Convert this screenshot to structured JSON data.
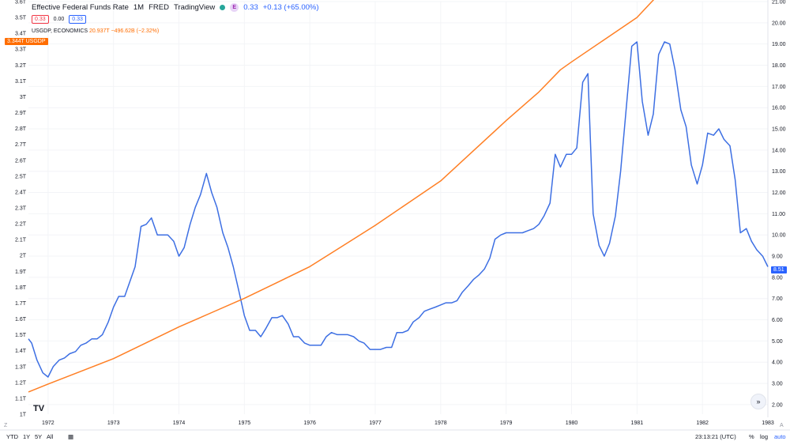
{
  "legend": {
    "title": "Effective Federal Funds Rate",
    "interval": "1M",
    "source": "FRED",
    "publisher": "TradingView",
    "e_badge": "E",
    "fed_value": "0.33",
    "fed_change": "+0.13 (+65.00%)",
    "bid": "0.33",
    "spread": "0.00",
    "ask": "0.33",
    "gdp_label": "USGDP, ECONOMICS",
    "gdp_value": "20.937T",
    "gdp_change": "−496.62B (−2.32%)"
  },
  "left_tag": {
    "value": "3.344T",
    "symbol": "USGDP"
  },
  "right_tag": {
    "value": "8.51"
  },
  "bottom_bar": {
    "ranges": [
      "YTD",
      "1Y",
      "5Y",
      "All"
    ],
    "calendar_icon": "calendar-icon",
    "time": "23:13:21 (UTC)",
    "percent": "%",
    "log": "log",
    "auto": "auto"
  },
  "goto_icon": "double-chevron-right-icon",
  "logo_text": "TV",
  "colors": {
    "fed": "#3d6fe3",
    "gdp": "#ff7f24",
    "axis_text": "#131722",
    "grid": "#f0f3fa"
  },
  "chart_data": {
    "type": "line",
    "x_ticks": [
      "1972",
      "1973",
      "1974",
      "1975",
      "1976",
      "1977",
      "1978",
      "1979",
      "1980",
      "1981",
      "1982",
      "1983"
    ],
    "left_axis_ticks": [
      "1T",
      "1.1T",
      "1.2T",
      "1.3T",
      "1.4T",
      "1.5T",
      "1.6T",
      "1.7T",
      "1.8T",
      "1.9T",
      "2T",
      "2.1T",
      "2.2T",
      "2.3T",
      "2.4T",
      "2.5T",
      "2.6T",
      "2.7T",
      "2.8T",
      "2.9T",
      "3T",
      "3.1T",
      "3.2T",
      "3.3T",
      "3.4T",
      "3.5T",
      "3.6T"
    ],
    "right_axis_ticks": [
      "2.00",
      "3.00",
      "4.00",
      "5.00",
      "6.00",
      "7.00",
      "8.00",
      "9.00",
      "10.00",
      "11.00",
      "12.00",
      "13.00",
      "14.00",
      "15.00",
      "16.00",
      "17.00",
      "18.00",
      "19.00",
      "20.00",
      "21.00"
    ],
    "left_ylim": [
      1.0,
      3.6
    ],
    "right_ylim": [
      1.55,
      21.0
    ],
    "xlim": [
      1971.7,
      1983.0
    ],
    "series": [
      {
        "name": "Effective Federal Funds Rate",
        "axis": "right",
        "x": [
          1971.7,
          1971.75,
          1971.83,
          1971.92,
          1972.0,
          1972.08,
          1972.17,
          1972.25,
          1972.33,
          1972.42,
          1972.5,
          1972.58,
          1972.67,
          1972.75,
          1972.83,
          1972.92,
          1973.0,
          1973.08,
          1973.17,
          1973.25,
          1973.33,
          1973.42,
          1973.5,
          1973.58,
          1973.67,
          1973.75,
          1973.83,
          1973.92,
          1974.0,
          1974.08,
          1974.17,
          1974.25,
          1974.33,
          1974.42,
          1974.5,
          1974.58,
          1974.67,
          1974.75,
          1974.83,
          1974.92,
          1975.0,
          1975.08,
          1975.17,
          1975.25,
          1975.33,
          1975.42,
          1975.5,
          1975.58,
          1975.67,
          1975.75,
          1975.83,
          1975.92,
          1976.0,
          1976.08,
          1976.17,
          1976.25,
          1976.33,
          1976.42,
          1976.5,
          1976.58,
          1976.67,
          1976.75,
          1976.83,
          1976.92,
          1977.0,
          1977.08,
          1977.17,
          1977.25,
          1977.33,
          1977.42,
          1977.5,
          1977.58,
          1977.67,
          1977.75,
          1977.83,
          1977.92,
          1978.0,
          1978.08,
          1978.17,
          1978.25,
          1978.33,
          1978.42,
          1978.5,
          1978.58,
          1978.67,
          1978.75,
          1978.83,
          1978.92,
          1979.0,
          1979.08,
          1979.17,
          1979.25,
          1979.33,
          1979.42,
          1979.5,
          1979.58,
          1979.67,
          1979.75,
          1979.83,
          1979.92,
          1980.0,
          1980.08,
          1980.17,
          1980.25,
          1980.33,
          1980.42,
          1980.5,
          1980.58,
          1980.67,
          1980.75,
          1980.83,
          1980.92,
          1981.0,
          1981.08,
          1981.17,
          1981.25,
          1981.33,
          1981.42,
          1981.5,
          1981.58,
          1981.67,
          1981.75,
          1981.83,
          1981.92,
          1982.0,
          1982.08,
          1982.17,
          1982.25,
          1982.33,
          1982.42,
          1982.5,
          1982.58,
          1982.67,
          1982.75,
          1982.83,
          1982.92,
          1983.0
        ],
        "y": [
          5.1,
          4.9,
          4.1,
          3.5,
          3.3,
          3.8,
          4.1,
          4.2,
          4.4,
          4.5,
          4.8,
          4.9,
          5.1,
          5.1,
          5.3,
          5.9,
          6.6,
          7.1,
          7.1,
          7.8,
          8.5,
          10.4,
          10.5,
          10.8,
          10.0,
          10.0,
          10.0,
          9.7,
          9.0,
          9.4,
          10.5,
          11.3,
          11.9,
          12.9,
          12.0,
          11.3,
          10.1,
          9.4,
          8.5,
          7.3,
          6.2,
          5.5,
          5.5,
          5.2,
          5.6,
          6.1,
          6.1,
          6.2,
          5.8,
          5.2,
          5.2,
          4.9,
          4.8,
          4.8,
          4.8,
          5.2,
          5.4,
          5.3,
          5.3,
          5.3,
          5.2,
          5.0,
          4.9,
          4.6,
          4.6,
          4.6,
          4.7,
          4.7,
          5.4,
          5.4,
          5.5,
          5.9,
          6.1,
          6.4,
          6.5,
          6.6,
          6.7,
          6.8,
          6.8,
          6.9,
          7.3,
          7.6,
          7.9,
          8.1,
          8.4,
          8.9,
          9.8,
          10.0,
          10.1,
          10.1,
          10.1,
          10.1,
          10.2,
          10.3,
          10.5,
          10.9,
          11.5,
          13.8,
          13.2,
          13.8,
          13.8,
          14.1,
          17.2,
          17.6,
          11.0,
          9.5,
          9.0,
          9.6,
          10.9,
          13.0,
          15.8,
          18.9,
          19.1,
          16.3,
          14.7,
          15.7,
          18.5,
          19.1,
          19.0,
          17.8,
          15.9,
          15.1,
          13.3,
          12.4,
          13.3,
          14.8,
          14.7,
          15.0,
          14.5,
          14.2,
          12.6,
          10.1,
          10.3,
          9.7,
          9.3,
          9.0,
          8.5
        ],
        "color": "#3d6fe3"
      },
      {
        "name": "USGDP, ECONOMICS",
        "axis": "left",
        "x": [
          1971.7,
          1972.0,
          1972.5,
          1973.0,
          1973.5,
          1974.0,
          1974.5,
          1975.0,
          1975.5,
          1976.0,
          1976.5,
          1977.0,
          1977.5,
          1978.0,
          1978.5,
          1979.0,
          1979.5,
          1979.83,
          1980.0,
          1980.5,
          1981.0,
          1981.5,
          1981.83,
          1982.0,
          1982.5,
          1983.0
        ],
        "y": [
          1.14,
          1.19,
          1.27,
          1.35,
          1.45,
          1.55,
          1.64,
          1.73,
          1.83,
          1.93,
          2.06,
          2.19,
          2.33,
          2.47,
          2.66,
          2.85,
          3.03,
          3.17,
          3.22,
          3.36,
          3.5,
          3.72,
          3.92,
          3.95,
          4.08,
          4.23
        ],
        "color": "#ff7f24"
      }
    ]
  }
}
